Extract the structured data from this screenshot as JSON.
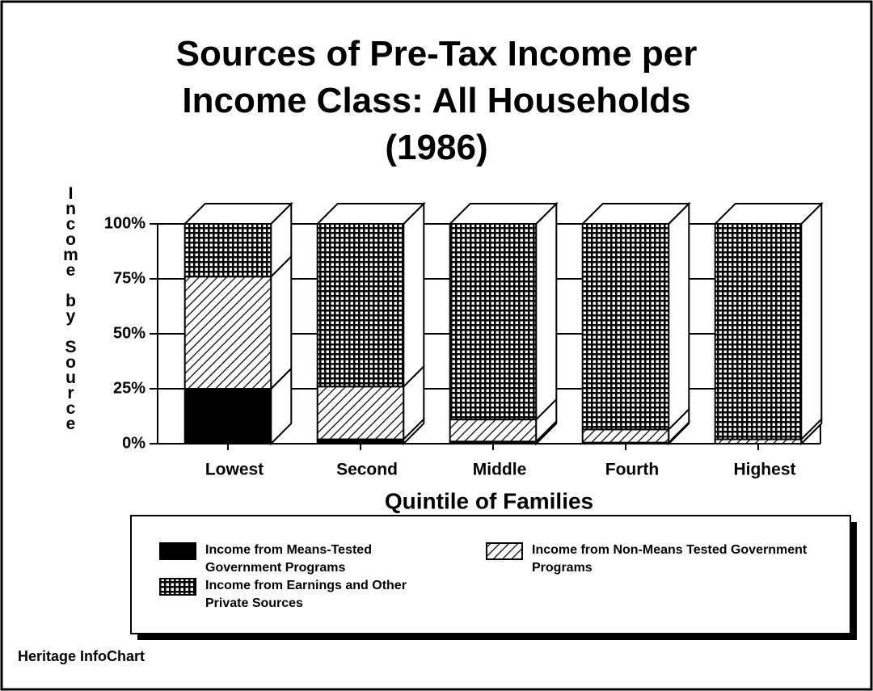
{
  "chart_data": {
    "type": "bar3d_stacked",
    "title": "Sources of Pre-Tax Income per Income Class:  All Households (1986)",
    "y_label": "Income by Source",
    "x_label": "Quintile of Families",
    "source": "Heritage InfoChart",
    "categories": [
      "Lowest",
      "Second",
      "Middle",
      "Fourth",
      "Highest"
    ],
    "series": [
      {
        "name": "Income from Means-Tested Government Programs",
        "color": "#000000",
        "pattern": "solid",
        "values": [
          25,
          2,
          1,
          0.5,
          0
        ]
      },
      {
        "name": "Income from Non-Means Tested Government Programs",
        "color": "#000000",
        "pattern": "hatch",
        "values": [
          51,
          24,
          10,
          6,
          2
        ]
      },
      {
        "name": "Income from Earnings and Other Private Sources",
        "color": "#000000",
        "pattern": "grid",
        "values": [
          24,
          74,
          89,
          93.5,
          98
        ]
      }
    ],
    "ylim": [
      0,
      100
    ],
    "yticks": [
      {
        "value": 0,
        "label": "0%"
      },
      {
        "value": 25,
        "label": "25%"
      },
      {
        "value": 50,
        "label": "50%"
      },
      {
        "value": 75,
        "label": "75%"
      },
      {
        "value": 100,
        "label": "100%"
      }
    ],
    "grid": true
  }
}
